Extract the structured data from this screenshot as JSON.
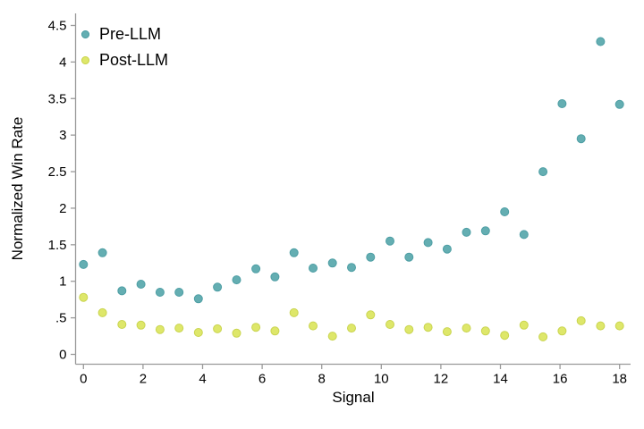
{
  "chart_data": {
    "type": "scatter",
    "title": "",
    "xlabel": "Signal",
    "ylabel": "Normalized Win Rate",
    "xlim": [
      0,
      18
    ],
    "ylim": [
      0,
      4.5
    ],
    "grid": false,
    "legend_position": "top-left-inside",
    "x_ticks": [
      0,
      2,
      4,
      6,
      8,
      10,
      12,
      14,
      16,
      18
    ],
    "x_tick_labels": [
      "0",
      "2",
      "4",
      "6",
      "8",
      "10",
      "12",
      "14",
      "16",
      "18"
    ],
    "y_ticks": [
      0,
      0.5,
      1,
      1.5,
      2,
      2.5,
      3,
      3.5,
      4,
      4.5
    ],
    "y_tick_labels": [
      "0",
      ".5",
      "1",
      "1.5",
      "2",
      "2.5",
      "3",
      "3.5",
      "4",
      "4.5"
    ],
    "x": [
      0,
      0.64,
      1.29,
      1.93,
      2.57,
      3.21,
      3.86,
      4.5,
      5.14,
      5.79,
      6.43,
      7.07,
      7.71,
      8.36,
      9,
      9.64,
      10.29,
      10.93,
      11.57,
      12.21,
      12.86,
      13.5,
      14.14,
      14.79,
      15.43,
      16.07,
      16.71,
      17.36,
      18
    ],
    "series": [
      {
        "name": "Pre-LLM",
        "color": "#64aeb2",
        "stroke_color": "#4d9ea4",
        "values": [
          1.23,
          1.39,
          0.87,
          0.96,
          0.85,
          0.85,
          0.76,
          0.92,
          1.02,
          1.17,
          1.06,
          1.39,
          1.18,
          1.25,
          1.19,
          1.33,
          1.55,
          1.33,
          1.53,
          1.44,
          1.67,
          1.69,
          1.95,
          1.64,
          2.5,
          3.43,
          2.95,
          4.28,
          3.42
        ]
      },
      {
        "name": "Post-LLM",
        "color": "#dee76a",
        "stroke_color": "#c9d44f",
        "values": [
          0.78,
          0.57,
          0.41,
          0.4,
          0.34,
          0.36,
          0.3,
          0.35,
          0.29,
          0.37,
          0.32,
          0.57,
          0.39,
          0.25,
          0.36,
          0.54,
          0.41,
          0.34,
          0.37,
          0.31,
          0.36,
          0.32,
          0.26,
          0.4,
          0.24,
          0.32,
          0.46,
          0.39,
          0.39
        ]
      }
    ],
    "axis_color": "#9a9a9a"
  }
}
